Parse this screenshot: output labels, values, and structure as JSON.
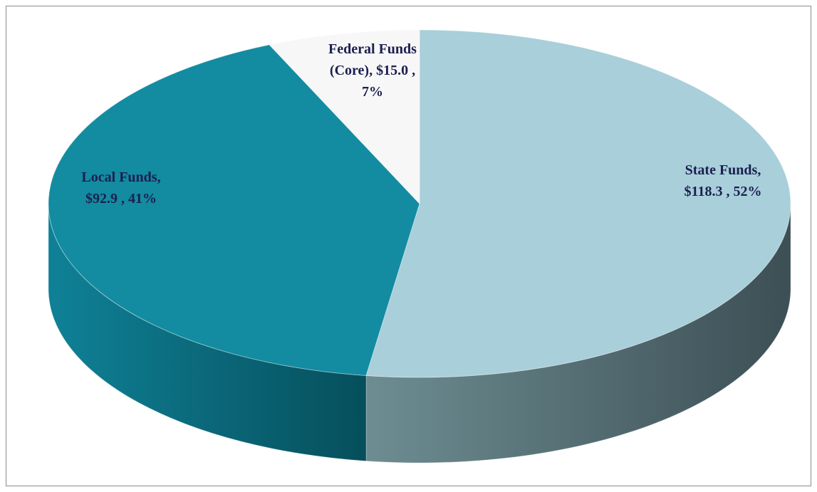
{
  "chart_data": {
    "type": "pie3d",
    "categories": [
      "State Funds",
      "Local Funds",
      "Federal Funds (Core)"
    ],
    "values": [
      118.3,
      92.9,
      15.0
    ],
    "data_labels": [
      [
        "State Funds,",
        "$118.3 , 52%"
      ],
      [
        "Local Funds,",
        "$92.9 , 41%"
      ],
      [
        "Federal Funds",
        "(Core), $15.0 ,",
        "7%"
      ]
    ],
    "colors": [
      "#a8cfda",
      "#138ba1",
      "#f7f7f7"
    ]
  }
}
